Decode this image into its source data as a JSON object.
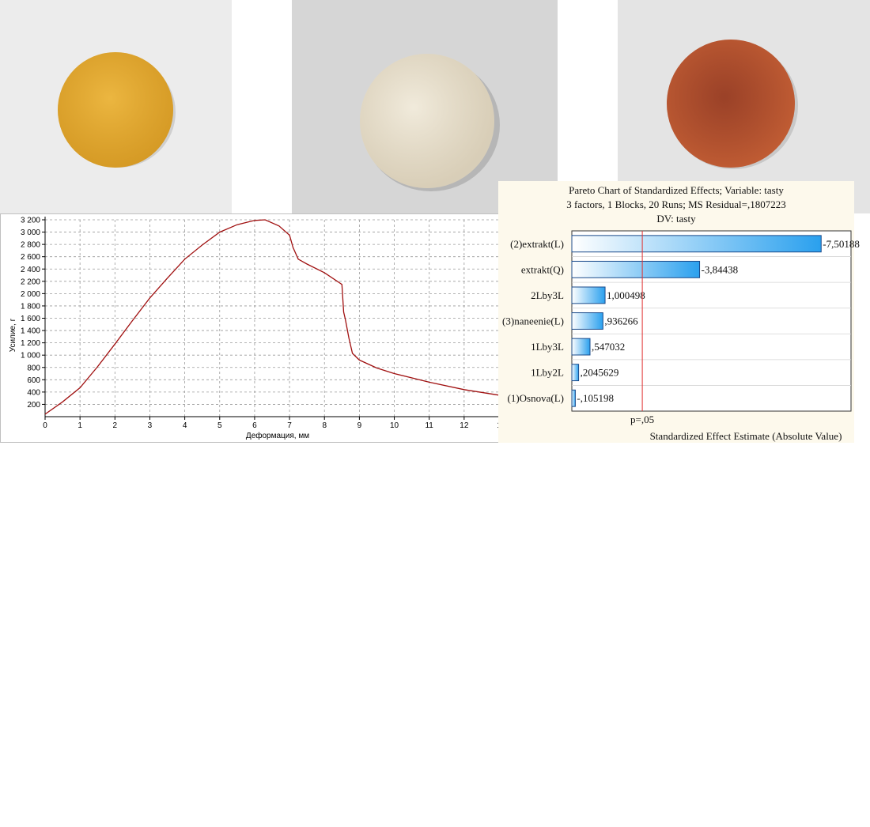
{
  "photos": [
    {
      "subject": "yellow round crispbread",
      "color": "#e0a830",
      "background": "#ececec"
    },
    {
      "subject": "white round crispbread",
      "color": "#e9e1cf",
      "background": "#d6d6d6"
    },
    {
      "subject": "brown-red round crispbread",
      "color": "#b5512e",
      "background": "#e4e4e4"
    }
  ],
  "chart_data": [
    {
      "type": "line",
      "title": "",
      "xlabel": "Деформация, мм",
      "ylabel": "Усилие, г",
      "xlim": [
        0,
        13
      ],
      "ylim": [
        0,
        3200
      ],
      "xticks": [
        "0",
        "1",
        "2",
        "3",
        "4",
        "5",
        "6",
        "7",
        "8",
        "9",
        "10",
        "11",
        "12",
        "1"
      ],
      "yticks": [
        "200",
        "400",
        "600",
        "800",
        "1 000",
        "1 200",
        "1 400",
        "1 600",
        "1 800",
        "2 000",
        "2 200",
        "2 400",
        "2 600",
        "2 800",
        "3 000",
        "3 200"
      ],
      "grid": true,
      "line_color": "#a01010",
      "series": [
        {
          "x": [
            0,
            0.5,
            1,
            1.5,
            2,
            2.5,
            3,
            3.5,
            4,
            4.5,
            5,
            5.5,
            6,
            6.3,
            6.7,
            7.0,
            7.1,
            7.25,
            7.5,
            8.0,
            8.5,
            8.55,
            8.6,
            8.7,
            8.8,
            9.0,
            9.5,
            10,
            11,
            12,
            13
          ],
          "y": [
            40,
            240,
            470,
            810,
            1180,
            1560,
            1930,
            2250,
            2560,
            2790,
            3000,
            3120,
            3190,
            3200,
            3100,
            2950,
            2750,
            2560,
            2480,
            2340,
            2150,
            1700,
            1580,
            1280,
            1030,
            920,
            790,
            700,
            560,
            440,
            350
          ]
        }
      ]
    },
    {
      "type": "bar",
      "orientation": "horizontal",
      "title_lines": [
        "Pareto Chart of Standardized Effects; Variable: tasty",
        "3 factors, 1 Blocks, 20 Runs; MS Residual=,1807223",
        "DV: tasty"
      ],
      "xlabel": "Standardized Effect Estimate (Absolute Value)",
      "reference_line": {
        "value": 2.12,
        "label": "p=,05",
        "color": "#e03030"
      },
      "xlim": [
        0,
        8.4
      ],
      "grid": true,
      "bar_color": "#2aa0ee",
      "categories": [
        "(2)extrakt(L)",
        "extrakt(Q)",
        "2Lby3L",
        "(3)naneenie(L)",
        "1Lby3L",
        "1Lby2L",
        "(1)Osnova(L)"
      ],
      "values": [
        7.50188,
        3.84438,
        1.000498,
        0.936266,
        0.547032,
        0.2045629,
        0.105198
      ],
      "value_labels": [
        "-7,50188",
        "-3,84438",
        "1,000498",
        ",936266",
        ",547032",
        ",2045629",
        "-,105198"
      ]
    }
  ]
}
